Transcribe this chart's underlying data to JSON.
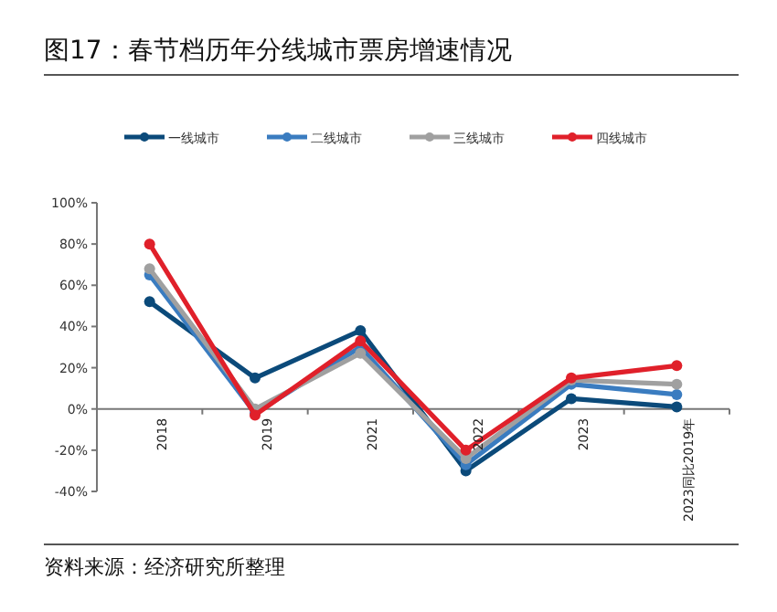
{
  "chart_data": {
    "type": "line",
    "title": "图17：春节档历年分线城市票房增速情况",
    "categories": [
      "2018",
      "2019",
      "2021",
      "2022",
      "2023",
      "2023同比2019年"
    ],
    "series": [
      {
        "name": "一线城市",
        "color": "#0b4a7a",
        "values": [
          52,
          15,
          38,
          -30,
          5,
          1
        ]
      },
      {
        "name": "二线城市",
        "color": "#3a7cc0",
        "values": [
          65,
          -2,
          30,
          -27,
          12,
          7
        ]
      },
      {
        "name": "三线城市",
        "color": "#a0a0a0",
        "values": [
          68,
          0,
          27,
          -24,
          14,
          12
        ]
      },
      {
        "name": "四线城市",
        "color": "#e0202a",
        "values": [
          80,
          -3,
          33,
          -20,
          15,
          21
        ]
      }
    ],
    "ylim": [
      -40,
      100
    ],
    "yticks": [
      {
        "value": -40,
        "label": "-40%"
      },
      {
        "value": -20,
        "label": "-20%"
      },
      {
        "value": 0,
        "label": "0%"
      },
      {
        "value": 20,
        "label": "20%"
      },
      {
        "value": 40,
        "label": "40%"
      },
      {
        "value": 60,
        "label": "60%"
      },
      {
        "value": 80,
        "label": "80%"
      },
      {
        "value": 100,
        "label": "100%"
      }
    ],
    "marker": "circle",
    "legend": "top",
    "grid": false,
    "annotations": [
      "资料来源：经济研究所整理"
    ]
  }
}
